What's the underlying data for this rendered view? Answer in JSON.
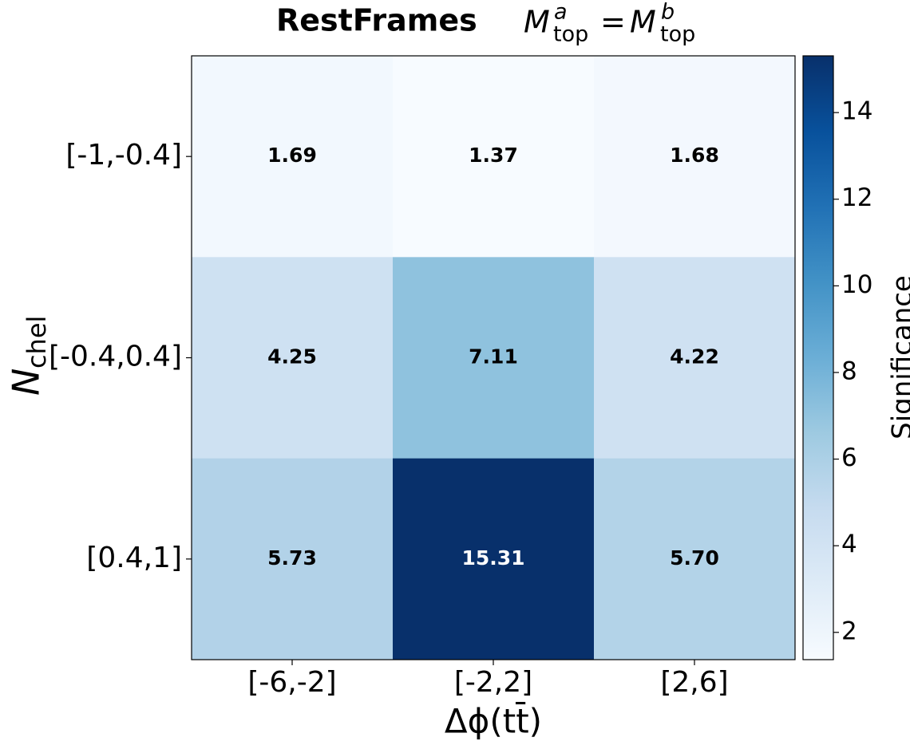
{
  "chart_data": {
    "type": "heatmap",
    "title": [
      "RestFrames",
      "M",
      "a",
      "top",
      "=",
      "M",
      "b",
      "top"
    ],
    "x_label": "Δϕ(tt̄)",
    "y_label": [
      "N",
      "chel"
    ],
    "x_categories": [
      "[-6,-2]",
      "[-2,2]",
      "[2,6]"
    ],
    "y_categories": [
      "[-1,-0.4]",
      "[-0.4,0.4]",
      "[0.4,1]"
    ],
    "values": [
      [
        1.69,
        1.37,
        1.68
      ],
      [
        4.25,
        7.11,
        4.22
      ],
      [
        5.73,
        15.31,
        5.7
      ]
    ],
    "value_labels": [
      [
        "1.69",
        "1.37",
        "1.68"
      ],
      [
        "4.25",
        "7.11",
        "4.22"
      ],
      [
        "5.73",
        "15.31",
        "5.70"
      ]
    ],
    "colormap": "Blues",
    "colorbar_label": "Significance",
    "clim": [
      1.37,
      15.31
    ],
    "cticks": [
      2,
      4,
      6,
      8,
      10,
      12,
      14
    ]
  }
}
